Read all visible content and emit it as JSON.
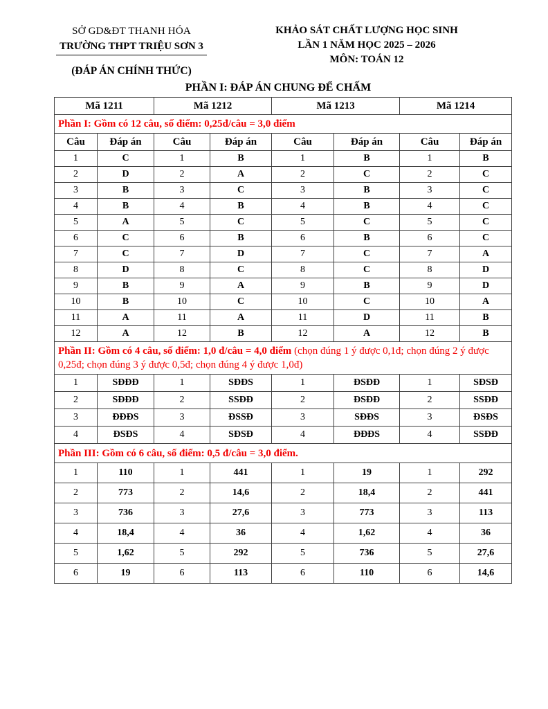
{
  "header": {
    "left": {
      "department": "SỞ GD&ĐT THANH HÓA",
      "school": "TRƯỜNG THPT TRIỆU SƠN 3",
      "official_label": "(ĐÁP ÁN CHÍNH THỨC)"
    },
    "right": {
      "exam_name": "KHẢO SÁT CHẤT LƯỢNG HỌC SINH",
      "session": "LẦN 1 NĂM HỌC 2025 – 2026",
      "subject": "MÔN: TOÁN 12"
    }
  },
  "title": "PHẦN I: ĐÁP ÁN CHUNG ĐỂ CHẤM",
  "colors": {
    "note_red": "#f20000",
    "ink": "#000000",
    "grid": "#3f3f3f"
  },
  "table": {
    "exam_codes": [
      "Mã 1211",
      "Mã 1212",
      "Mã 1213",
      "Mã 1214"
    ],
    "col_headers": [
      "Câu",
      "Đáp án"
    ],
    "part1": {
      "note": "Phần I: Gồm có 12 câu, số điểm: 0,25đ/câu = 3,0 điểm",
      "rows": [
        {
          "q": "1",
          "a": [
            "C",
            "B",
            "B",
            "B"
          ]
        },
        {
          "q": "2",
          "a": [
            "D",
            "A",
            "C",
            "C"
          ]
        },
        {
          "q": "3",
          "a": [
            "B",
            "C",
            "B",
            "C"
          ]
        },
        {
          "q": "4",
          "a": [
            "B",
            "B",
            "B",
            "C"
          ]
        },
        {
          "q": "5",
          "a": [
            "A",
            "C",
            "C",
            "C"
          ]
        },
        {
          "q": "6",
          "a": [
            "C",
            "B",
            "B",
            "C"
          ]
        },
        {
          "q": "7",
          "a": [
            "C",
            "D",
            "C",
            "A"
          ]
        },
        {
          "q": "8",
          "a": [
            "D",
            "C",
            "C",
            "D"
          ]
        },
        {
          "q": "9",
          "a": [
            "B",
            "A",
            "B",
            "D"
          ]
        },
        {
          "q": "10",
          "a": [
            "B",
            "C",
            "C",
            "A"
          ]
        },
        {
          "q": "11",
          "a": [
            "A",
            "A",
            "D",
            "B"
          ]
        },
        {
          "q": "12",
          "a": [
            "A",
            "B",
            "A",
            "B"
          ]
        }
      ]
    },
    "part2": {
      "note_bold": "Phần II: Gồm có 4 câu, số điểm: 1,0 đ/câu = 4,0 điểm",
      "note_regular": " (chọn đúng 1 ý được 0,1đ; chọn đúng 2 ý được 0,25đ; chọn đúng 3 ý được 0,5đ; chọn đúng 4 ý được 1,0đ)",
      "rows": [
        {
          "q": "1",
          "a": [
            "SĐĐĐ",
            "SĐĐS",
            "ĐSĐĐ",
            "SĐSĐ"
          ]
        },
        {
          "q": "2",
          "a": [
            "SĐĐĐ",
            "SSĐĐ",
            "ĐSĐĐ",
            "SSĐĐ"
          ]
        },
        {
          "q": "3",
          "a": [
            "ĐĐĐS",
            "ĐSSĐ",
            "SĐĐS",
            "ĐSĐS"
          ]
        },
        {
          "q": "4",
          "a": [
            "ĐSĐS",
            "SĐSĐ",
            "ĐĐĐS",
            "SSĐĐ"
          ]
        }
      ]
    },
    "part3": {
      "note": "Phần III: Gồm có 6 câu, số điểm: 0,5 đ/câu = 3,0 điểm.",
      "rows": [
        {
          "q": "1",
          "a": [
            "110",
            "441",
            "19",
            "292"
          ]
        },
        {
          "q": "2",
          "a": [
            "773",
            "14,6",
            "18,4",
            "441"
          ]
        },
        {
          "q": "3",
          "a": [
            "736",
            "27,6",
            "773",
            "113"
          ]
        },
        {
          "q": "4",
          "a": [
            "18,4",
            "36",
            "1,62",
            "36"
          ]
        },
        {
          "q": "5",
          "a": [
            "1,62",
            "292",
            "736",
            "27,6"
          ]
        },
        {
          "q": "6",
          "a": [
            "19",
            "113",
            "110",
            "14,6"
          ]
        }
      ]
    }
  }
}
